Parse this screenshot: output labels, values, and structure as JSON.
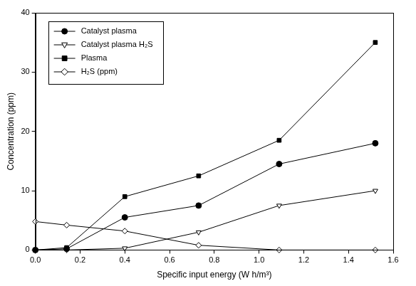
{
  "chart_data": {
    "type": "line",
    "x_label": "Specific input energy (W h/m³)",
    "y_label": "Concentration (ppm)",
    "x": [
      0,
      0.14,
      0.4,
      0.73,
      1.09,
      1.52
    ],
    "series": [
      {
        "name": "Catalyst plasma",
        "color": "#000000",
        "marker": "circle",
        "values": [
          0,
          0.2,
          5.5,
          7.5,
          14.5,
          18
        ]
      },
      {
        "name": "Catalyst plasma H₂S",
        "color": "#000000",
        "marker": "triangle-down-open",
        "values": [
          0,
          0,
          0.3,
          3,
          7.5,
          10
        ]
      },
      {
        "name": "Plasma",
        "color": "#000000",
        "marker": "square",
        "values": [
          0,
          0.4,
          9,
          12.5,
          18.5,
          35
        ]
      },
      {
        "name": "H₂S (ppm)",
        "color": "#000000",
        "marker": "diamond-open",
        "values": [
          4.8,
          4.2,
          3.2,
          0.8,
          0,
          0
        ]
      }
    ],
    "xlim": [
      0,
      1.6
    ],
    "xticks": [
      {
        "value": 0,
        "label": "0.0"
      },
      0.2,
      0.4,
      0.6,
      0.8,
      {
        "value": 1,
        "label": "1.0"
      },
      1.2,
      1.4,
      1.6
    ],
    "ylim": [
      0,
      40
    ],
    "yticks": [
      0,
      10,
      20,
      30,
      40
    ],
    "grid": false,
    "legend": "upper left"
  }
}
